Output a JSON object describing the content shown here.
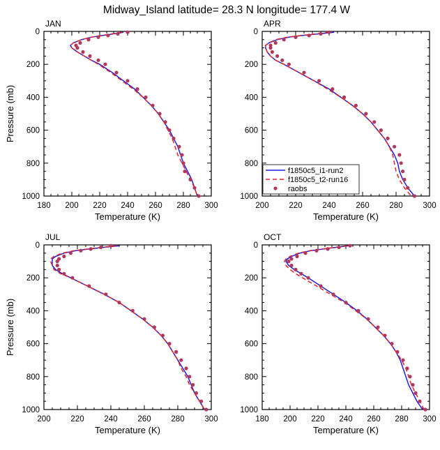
{
  "figure": {
    "title": "Midway_Island  latitude= 28.3 N longitude= 177.4 W"
  },
  "legend": {
    "placement": "inside APR panel, lower-left",
    "entries": [
      {
        "label": "f1850c5_i1-run2",
        "color": "#1f1fe0",
        "style": "solid line"
      },
      {
        "label": "f1850c5_t2-run16",
        "color": "#e8202a",
        "style": "dashed line"
      },
      {
        "label": "raobs",
        "color": "#b0385a",
        "style": "dots"
      }
    ]
  },
  "chart_data": [
    {
      "type": "line",
      "panel": "JAN",
      "xlabel": "Temperature (K)",
      "ylabel": "Pressure (mb)",
      "xlim": [
        180,
        300
      ],
      "ylim": [
        1000,
        0
      ],
      "xticks": [
        180,
        200,
        220,
        240,
        260,
        280,
        300
      ],
      "yticks": [
        0,
        200,
        400,
        600,
        800,
        1000
      ],
      "y": [
        5,
        15,
        25,
        35,
        50,
        70,
        85,
        100,
        125,
        150,
        175,
        200,
        250,
        300,
        350,
        400,
        450,
        500,
        550,
        600,
        650,
        700,
        750,
        800,
        850,
        900,
        950,
        1000
      ],
      "series": [
        {
          "name": "f1850c5_i1-run2",
          "x": [
            237,
            230,
            222,
            214,
            207,
            201,
            199,
            200,
            204,
            209,
            214,
            220,
            229,
            237,
            245,
            251,
            257,
            262,
            266,
            270,
            273,
            276,
            278,
            280,
            283,
            286,
            288,
            290
          ]
        },
        {
          "name": "f1850c5_t2-run16",
          "x": [
            236,
            229,
            221,
            214,
            207,
            201,
            199,
            200,
            204,
            209,
            214,
            219,
            228,
            236,
            244,
            251,
            257,
            262,
            266,
            269,
            272,
            274,
            276,
            279,
            282,
            285,
            288,
            290
          ]
        },
        {
          "name": "raobs",
          "x": [
            240,
            233,
            226,
            219,
            212,
            206,
            203,
            204,
            208,
            213,
            219,
            224,
            232,
            240,
            247,
            253,
            258,
            263,
            267,
            270,
            273,
            277,
            279,
            280,
            281,
            285,
            288,
            291
          ]
        }
      ]
    },
    {
      "type": "line",
      "panel": "APR",
      "xlabel": "Temperature (K)",
      "ylabel": "",
      "xlim": [
        200,
        300
      ],
      "ylim": [
        1000,
        0
      ],
      "xticks": [
        200,
        220,
        240,
        260,
        280,
        300
      ],
      "yticks": [
        0,
        200,
        400,
        600,
        800,
        1000
      ],
      "y": [
        5,
        15,
        25,
        35,
        50,
        70,
        85,
        100,
        125,
        150,
        175,
        200,
        250,
        300,
        350,
        400,
        450,
        500,
        550,
        600,
        650,
        700,
        750,
        800,
        850,
        900,
        950,
        1000
      ],
      "series": [
        {
          "name": "f1850c5_i1-run2",
          "x": [
            243,
            234,
            224,
            216,
            209,
            204,
            202,
            202,
            203,
            205,
            208,
            213,
            222,
            231,
            240,
            247,
            254,
            260,
            265,
            269,
            273,
            276,
            279,
            281,
            282,
            284,
            287,
            291
          ]
        },
        {
          "name": "f1850c5_t2-run16",
          "x": [
            240,
            232,
            223,
            215,
            208,
            204,
            202,
            202,
            203,
            205,
            208,
            213,
            222,
            231,
            239,
            247,
            254,
            260,
            265,
            269,
            273,
            276,
            278,
            279,
            280,
            282,
            285,
            289
          ]
        },
        {
          "name": "raobs",
          "x": [
            240,
            235,
            228,
            220,
            213,
            208,
            205,
            205,
            206,
            209,
            212,
            216,
            225,
            234,
            242,
            249,
            256,
            262,
            267,
            271,
            275,
            279,
            282,
            283,
            284,
            285,
            287,
            291
          ]
        }
      ]
    },
    {
      "type": "line",
      "panel": "JUL",
      "xlabel": "Temperature (K)",
      "ylabel": "Pressure (mb)",
      "xlim": [
        200,
        300
      ],
      "ylim": [
        1000,
        0
      ],
      "xticks": [
        200,
        220,
        240,
        260,
        280,
        300
      ],
      "yticks": [
        0,
        200,
        400,
        600,
        800,
        1000
      ],
      "y": [
        5,
        15,
        25,
        35,
        50,
        70,
        85,
        100,
        125,
        150,
        175,
        200,
        250,
        300,
        350,
        400,
        450,
        500,
        550,
        600,
        650,
        700,
        750,
        800,
        850,
        900,
        950,
        1000
      ],
      "series": [
        {
          "name": "f1850c5_i1-run2",
          "x": [
            245,
            236,
            227,
            219,
            212,
            207,
            205,
            205,
            205,
            207,
            211,
            216,
            226,
            236,
            245,
            252,
            259,
            265,
            270,
            274,
            277,
            280,
            283,
            286,
            288,
            290,
            293,
            296
          ]
        },
        {
          "name": "f1850c5_t2-run16",
          "x": [
            243,
            235,
            226,
            218,
            211,
            206,
            204,
            204,
            205,
            206,
            210,
            216,
            226,
            236,
            245,
            252,
            259,
            265,
            270,
            274,
            277,
            280,
            282,
            285,
            287,
            290,
            293,
            296
          ]
        },
        {
          "name": "raobs",
          "x": [
            240,
            234,
            228,
            222,
            216,
            212,
            209,
            208,
            208,
            209,
            212,
            217,
            227,
            237,
            245,
            253,
            260,
            266,
            271,
            275,
            279,
            282,
            285,
            287,
            289,
            291,
            294,
            297
          ]
        }
      ]
    },
    {
      "type": "line",
      "panel": "OCT",
      "xlabel": "Temperature (K)",
      "ylabel": "",
      "xlim": [
        180,
        300
      ],
      "ylim": [
        1000,
        0
      ],
      "xticks": [
        180,
        200,
        220,
        240,
        260,
        280,
        300
      ],
      "yticks": [
        0,
        200,
        400,
        600,
        800,
        1000
      ],
      "y": [
        5,
        15,
        25,
        35,
        50,
        70,
        85,
        100,
        125,
        150,
        175,
        200,
        250,
        300,
        350,
        400,
        450,
        500,
        550,
        600,
        650,
        700,
        750,
        800,
        850,
        900,
        950,
        1000
      ],
      "series": [
        {
          "name": "f1850c5_i1-run2",
          "x": [
            242,
            233,
            224,
            215,
            207,
            201,
            198,
            197,
            199,
            203,
            208,
            213,
            222,
            231,
            240,
            248,
            255,
            261,
            267,
            272,
            276,
            279,
            281,
            283,
            285,
            288,
            291,
            295
          ]
        },
        {
          "name": "f1850c5_t2-run16",
          "x": [
            241,
            232,
            223,
            214,
            206,
            200,
            197,
            196,
            197,
            200,
            204,
            209,
            219,
            229,
            239,
            247,
            255,
            261,
            267,
            272,
            276,
            280,
            283,
            285,
            287,
            290,
            293,
            296
          ]
        },
        {
          "name": "raobs",
          "x": [
            243,
            235,
            227,
            219,
            211,
            205,
            201,
            199,
            201,
            204,
            208,
            213,
            222,
            231,
            240,
            249,
            256,
            263,
            268,
            273,
            277,
            281,
            284,
            286,
            288,
            290,
            293,
            297
          ]
        }
      ]
    }
  ]
}
